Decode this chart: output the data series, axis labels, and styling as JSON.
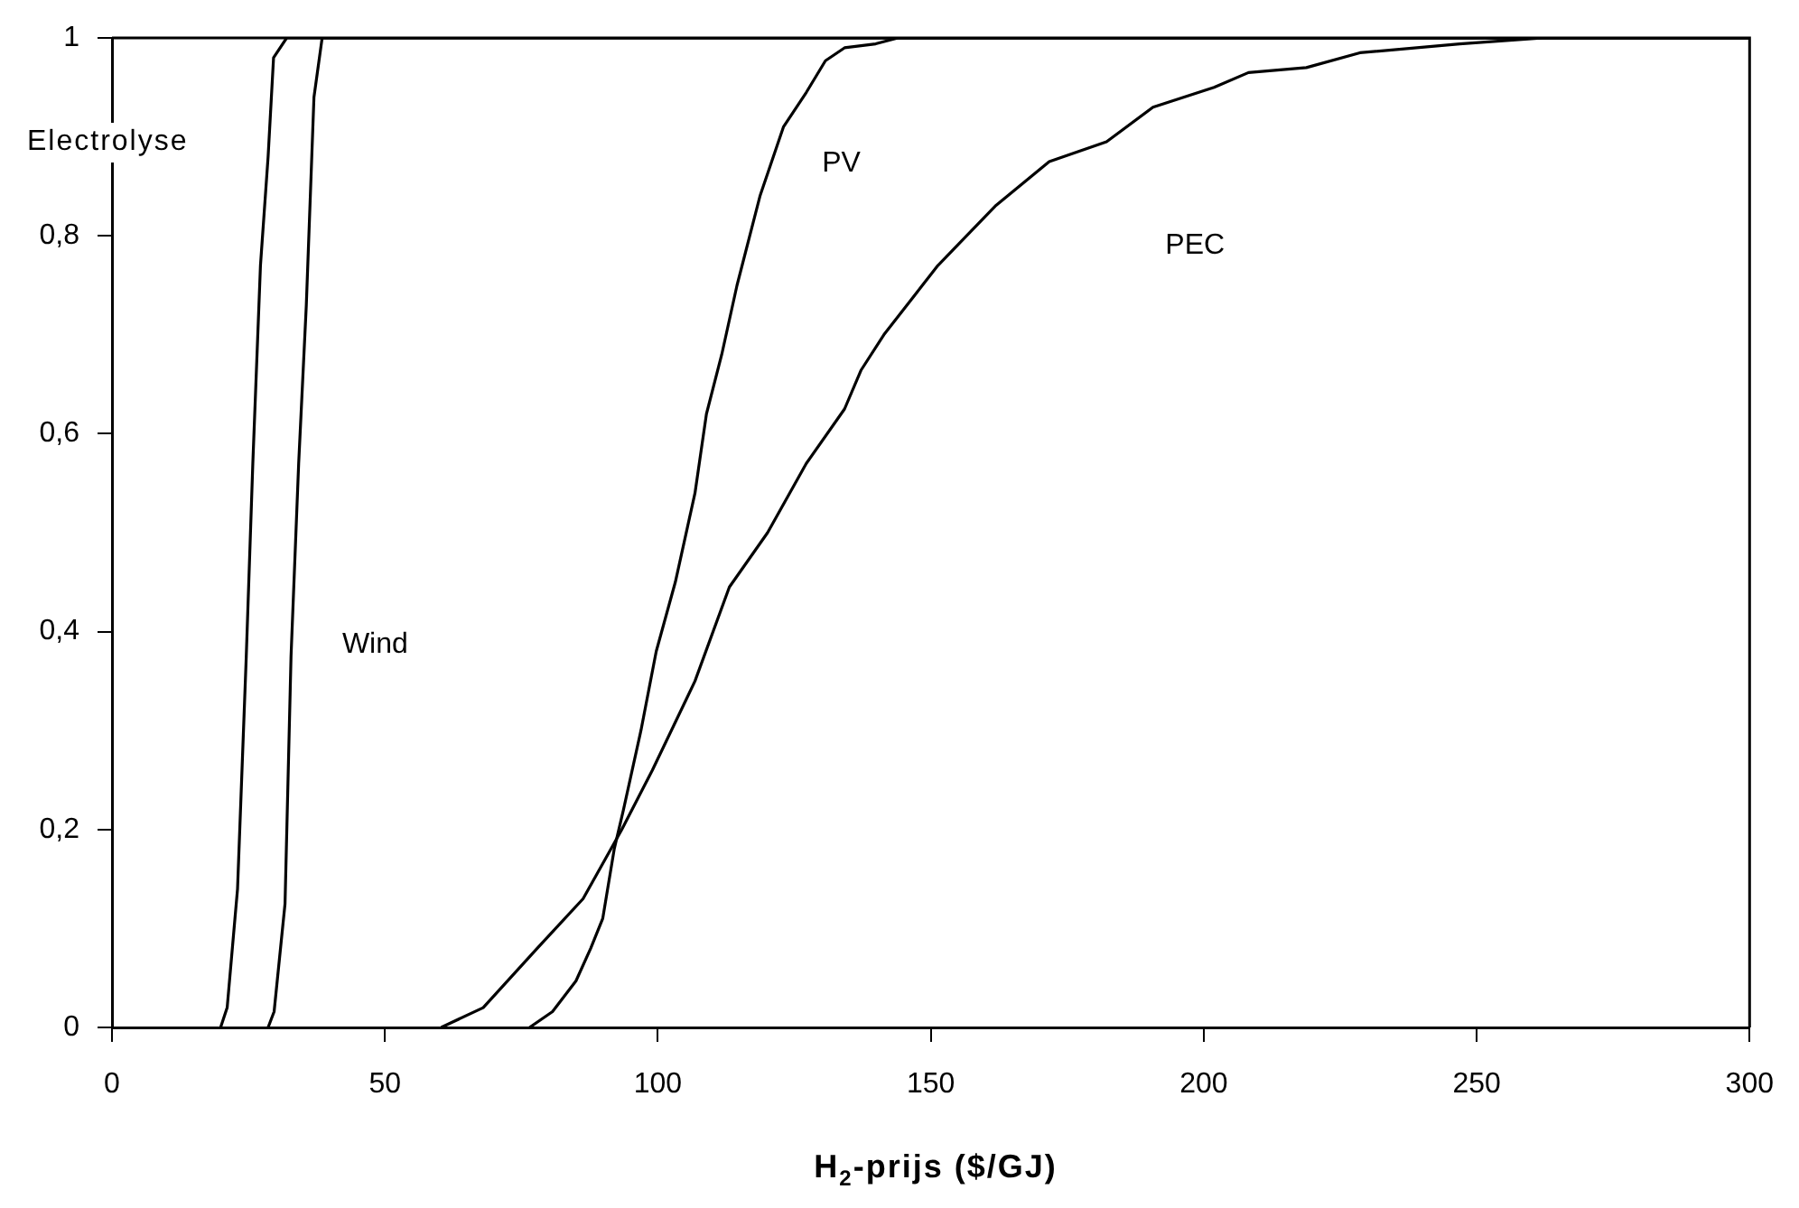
{
  "chart_data": {
    "type": "line",
    "xlabel": "H$_{2}$-prijs ($/GJ)",
    "xlim": [
      0,
      300
    ],
    "xticks": [
      0,
      50,
      100,
      150,
      200,
      250,
      300
    ],
    "ylim": [
      0,
      1
    ],
    "yticks": [
      0,
      {
        "value": 0.2,
        "label": "0,2"
      },
      {
        "value": 0.4,
        "label": "0,4"
      },
      {
        "value": 0.6,
        "label": "0,6"
      },
      {
        "value": 0.8,
        "label": "0,8"
      },
      1
    ],
    "grid": false,
    "legend": false,
    "marker": "none",
    "line_style": "solid",
    "series": [
      {
        "color": "#000000",
        "x": [
          19.9,
          21.1,
          23,
          24.6,
          25.8,
          27.2,
          28.6,
          29.6,
          32,
          300
        ],
        "values": [
          0,
          0.02,
          0.14,
          0.375,
          0.57,
          0.77,
          0.88,
          0.98,
          1,
          1
        ]
      },
      {
        "color": "#000000",
        "x": [
          28.6,
          29.7,
          31.7,
          32.8,
          34.2,
          35.6,
          37,
          38.5,
          300
        ],
        "values": [
          0,
          0.016,
          0.125,
          0.375,
          0.57,
          0.73,
          0.94,
          1,
          1
        ]
      },
      {
        "color": "#000000",
        "x": [
          76.5,
          80.7,
          85,
          87.7,
          89.9,
          92,
          93.7,
          96.9,
          99.7,
          103.2,
          106.8,
          108.9,
          111.7,
          114.5,
          118.7,
          123,
          127.2,
          130.7,
          134.2,
          139.9,
          144,
          300
        ],
        "values": [
          0,
          0.016,
          0.047,
          0.08,
          0.11,
          0.18,
          0.22,
          0.3,
          0.38,
          0.45,
          0.54,
          0.62,
          0.68,
          0.75,
          0.84,
          0.91,
          0.945,
          0.977,
          0.99,
          0.994,
          1,
          1
        ]
      },
      {
        "color": "#000000",
        "x": [
          60.3,
          68,
          77.9,
          86.3,
          93.4,
          99,
          106.8,
          113.1,
          120.1,
          127.2,
          134.2,
          137.2,
          141.4,
          151.3,
          161.8,
          171.7,
          182.2,
          190.7,
          201.9,
          208.2,
          218.8,
          228.6,
          246.9,
          262.3,
          300
        ],
        "values": [
          0,
          0.02,
          0.08,
          0.13,
          0.2,
          0.26,
          0.35,
          0.445,
          0.5,
          0.57,
          0.625,
          0.664,
          0.7,
          0.77,
          0.83,
          0.875,
          0.895,
          0.93,
          0.95,
          0.965,
          0.97,
          0.985,
          0.994,
          1,
          1
        ]
      }
    ],
    "annotations": [
      "Electrolyse",
      {
        "text": "Wind",
        "x": 48.2,
        "y": 0.387
      },
      {
        "text": "PV",
        "x": 133.6,
        "y": 0.873
      },
      {
        "text": "PEC",
        "x": 198.4,
        "y": 0.79
      }
    ]
  }
}
